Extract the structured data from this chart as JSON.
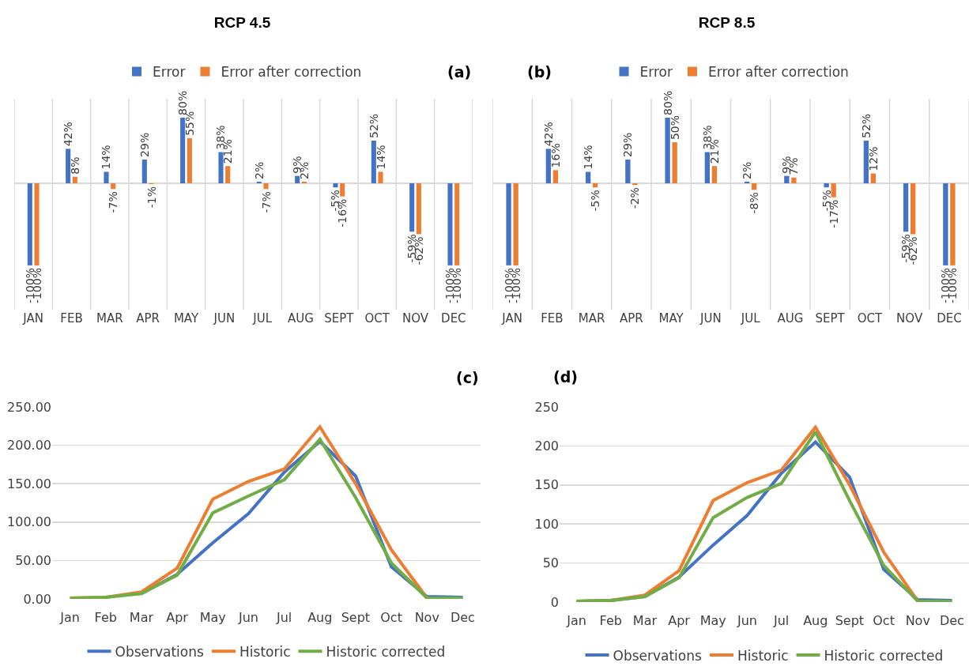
{
  "chart_data": [
    {
      "type": "bar",
      "title": "RCP 4.5",
      "annotations": [
        "(a)"
      ],
      "categories": [
        "JAN",
        "FEB",
        "MAR",
        "APR",
        "MAY",
        "JUN",
        "JUL",
        "AUG",
        "SEPT",
        "OCT",
        "NOV",
        "DEC"
      ],
      "ylim": [
        -154,
        103
      ],
      "tick_labels": "x",
      "grid": "x",
      "legend": "top",
      "series": [
        {
          "name": "Error",
          "color": "#4472c4",
          "values": [
            -100,
            42,
            14,
            29,
            80,
            38,
            2,
            9,
            -5,
            52,
            -59,
            -100
          ],
          "value_labels": [
            "-100%",
            "42%",
            "14%",
            "29%",
            "80%",
            "38%",
            "2%",
            "9%",
            "-5%",
            "52%",
            "-59%",
            "-100%"
          ]
        },
        {
          "name": "Error after correction",
          "color": "#ed7d31",
          "values": [
            -100,
            8,
            -7,
            -1,
            55,
            21,
            -7,
            2,
            -16,
            14,
            -62,
            -100
          ],
          "value_labels": [
            "-100%",
            "8%",
            "-7%",
            "-1%",
            "55%",
            "21%",
            "-7%",
            "2%",
            "-16%",
            "14%",
            "-62%",
            "-100%"
          ]
        }
      ]
    },
    {
      "type": "bar",
      "title": "RCP 8.5",
      "annotations": [
        "(b)"
      ],
      "categories": [
        "JAN",
        "FEB",
        "MAR",
        "APR",
        "MAY",
        "JUN",
        "JUL",
        "AUG",
        "SEPT",
        "OCT",
        "NOV",
        "DEC"
      ],
      "ylim": [
        -154,
        103
      ],
      "tick_labels": "x",
      "grid": "x",
      "legend": "top",
      "series": [
        {
          "name": "Error",
          "color": "#4472c4",
          "values": [
            -100,
            42,
            14,
            29,
            80,
            38,
            2,
            9,
            -5,
            52,
            -59,
            -100
          ],
          "value_labels": [
            "-100%",
            "42%",
            "14%",
            "29%",
            "80%",
            "38%",
            "2%",
            "9%",
            "-5%",
            "52%",
            "-59%",
            "-100%"
          ]
        },
        {
          "name": "Error after correction",
          "color": "#ed7d31",
          "values": [
            -100,
            16,
            -5,
            -2,
            50,
            21,
            -8,
            7,
            -17,
            12,
            -62,
            -100
          ],
          "value_labels": [
            "-100%",
            "16%",
            "-5%",
            "-2%",
            "50%",
            "21%",
            "-8%",
            "7%",
            "-17%",
            "12%",
            "-62%",
            "-100%"
          ]
        }
      ]
    },
    {
      "type": "line",
      "annotations": [
        "(c)"
      ],
      "categories": [
        "Jan",
        "Feb",
        "Mar",
        "Apr",
        "May",
        "Jun",
        "Jul",
        "Aug",
        "Sept",
        "Oct",
        "Nov",
        "Dec"
      ],
      "ylim": [
        0,
        250
      ],
      "yticks": [
        {
          "value": 0,
          "label": "0.00"
        },
        {
          "value": 50,
          "label": "50.00"
        },
        {
          "value": 100,
          "label": "100.00"
        },
        {
          "value": 150,
          "label": "150.00"
        },
        {
          "value": 200,
          "label": "200.00"
        },
        {
          "value": 250,
          "label": "250.00"
        }
      ],
      "grid": "y",
      "legend": "bottom",
      "line_style": "solid",
      "series": [
        {
          "name": "Observations",
          "color": "#4472c4",
          "values": [
            null,
            null,
            7,
            32,
            73,
            111,
            165,
            205,
            160,
            42,
            3,
            2
          ]
        },
        {
          "name": "Historic",
          "color": "#ed7d31",
          "values": [
            1,
            2,
            9,
            40,
            130,
            153,
            169,
            224,
            150,
            64,
            1,
            1
          ]
        },
        {
          "name": "Historic corrected",
          "color": "#70ad47",
          "values": [
            1,
            2,
            7,
            31,
            112,
            134,
            155,
            208,
            132,
            47,
            1,
            1
          ]
        }
      ]
    },
    {
      "type": "line",
      "annotations": [
        "(d)"
      ],
      "categories": [
        "Jan",
        "Feb",
        "Mar",
        "Apr",
        "May",
        "Jun",
        "Jul",
        "Aug",
        "Sept",
        "Oct",
        "Nov",
        "Dec"
      ],
      "ylim": [
        0,
        250
      ],
      "yticks": [
        0,
        50,
        100,
        150,
        200,
        250
      ],
      "grid": "y",
      "legend": "bottom",
      "line_style": "solid",
      "series": [
        {
          "name": "Observations",
          "color": "#4472c4",
          "values": [
            1,
            2,
            7,
            32,
            73,
            111,
            165,
            205,
            160,
            42,
            3,
            2
          ]
        },
        {
          "name": "Historic",
          "color": "#ed7d31",
          "values": [
            1,
            2,
            9,
            40,
            130,
            153,
            169,
            224,
            150,
            64,
            1,
            1
          ]
        },
        {
          "name": "Historic corrected",
          "color": "#70ad47",
          "values": [
            1,
            2,
            7,
            31,
            108,
            134,
            152,
            218,
            130,
            47,
            1,
            1
          ]
        }
      ]
    }
  ]
}
